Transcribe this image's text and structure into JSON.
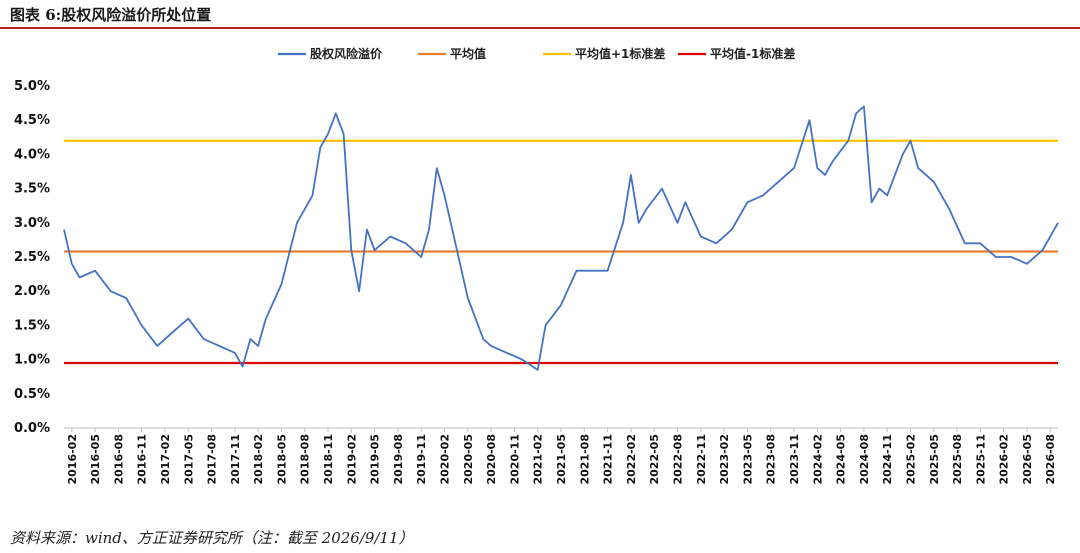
{
  "figure": {
    "title": "图表 6:股权风险溢价所处位置",
    "source": "资料来源：wind、方正证券研究所（注：截至 2026/9/11）"
  },
  "chart_data": {
    "type": "line",
    "ylim": [
      0.0,
      5.0
    ],
    "yticks": [
      "0.0%",
      "0.5%",
      "1.0%",
      "1.5%",
      "2.0%",
      "2.5%",
      "3.0%",
      "3.5%",
      "4.0%",
      "4.5%",
      "5.0%"
    ],
    "grid": false,
    "legend_position": "top-center",
    "xticks": [
      "2016-02",
      "2016-05",
      "2016-08",
      "2016-11",
      "2017-02",
      "2017-05",
      "2017-08",
      "2017-11",
      "2018-02",
      "2018-05",
      "2018-08",
      "2018-11",
      "2019-02",
      "2019-05",
      "2019-08",
      "2019-11",
      "2020-02",
      "2020-05",
      "2020-08",
      "2020-11",
      "2021-02",
      "2021-05",
      "2021-08",
      "2021-11",
      "2022-02",
      "2022-05",
      "2022-08",
      "2022-11",
      "2023-02",
      "2023-05",
      "2023-08",
      "2023-11",
      "2024-02",
      "2024-05",
      "2024-08",
      "2024-11",
      "2025-02",
      "2025-05",
      "2025-08",
      "2025-11",
      "2026-02",
      "2026-05",
      "2026-08"
    ],
    "series": [
      {
        "name": "股权风险溢价",
        "color": "#4472c4",
        "x": [
          "2016-01",
          "2016-02",
          "2016-03",
          "2016-05",
          "2016-07",
          "2016-09",
          "2016-11",
          "2017-01",
          "2017-03",
          "2017-05",
          "2017-07",
          "2017-09",
          "2017-11",
          "2017-12",
          "2018-01",
          "2018-02",
          "2018-03",
          "2018-05",
          "2018-07",
          "2018-09",
          "2018-10",
          "2018-11",
          "2018-12",
          "2019-01",
          "2019-02",
          "2019-03",
          "2019-04",
          "2019-05",
          "2019-07",
          "2019-09",
          "2019-11",
          "2019-12",
          "2020-01",
          "2020-02",
          "2020-03",
          "2020-05",
          "2020-07",
          "2020-08",
          "2020-10",
          "2020-12",
          "2021-02",
          "2021-03",
          "2021-05",
          "2021-07",
          "2021-09",
          "2021-11",
          "2022-01",
          "2022-02",
          "2022-03",
          "2022-04",
          "2022-06",
          "2022-08",
          "2022-09",
          "2022-11",
          "2023-01",
          "2023-03",
          "2023-05",
          "2023-07",
          "2023-09",
          "2023-11",
          "2024-01",
          "2024-02",
          "2024-03",
          "2024-04",
          "2024-06",
          "2024-07",
          "2024-08",
          "2024-09",
          "2024-10",
          "2024-11",
          "2025-01",
          "2025-02",
          "2025-03",
          "2025-05",
          "2025-07",
          "2025-09",
          "2025-11",
          "2026-01",
          "2026-03",
          "2026-05",
          "2026-07",
          "2026-09"
        ],
        "values": [
          2.9,
          2.4,
          2.2,
          2.3,
          2.0,
          1.9,
          1.5,
          1.2,
          1.4,
          1.6,
          1.3,
          1.2,
          1.1,
          0.9,
          1.3,
          1.2,
          1.6,
          2.1,
          3.0,
          3.4,
          4.1,
          4.3,
          4.6,
          4.3,
          2.6,
          2.0,
          2.9,
          2.6,
          2.8,
          2.7,
          2.5,
          2.9,
          3.8,
          3.4,
          2.9,
          1.9,
          1.3,
          1.2,
          1.1,
          1.0,
          0.85,
          1.5,
          1.8,
          2.3,
          2.3,
          2.3,
          3.0,
          3.7,
          3.0,
          3.2,
          3.5,
          3.0,
          3.3,
          2.8,
          2.7,
          2.9,
          3.3,
          3.4,
          3.6,
          3.8,
          4.5,
          3.8,
          3.7,
          3.9,
          4.2,
          4.6,
          4.7,
          3.3,
          3.5,
          3.4,
          4.0,
          4.2,
          3.8,
          3.6,
          3.2,
          2.7,
          2.7,
          2.5,
          2.5,
          2.4,
          2.6,
          3.0
        ]
      },
      {
        "name": "平均值",
        "color": "#ed7d31",
        "value": 2.58
      },
      {
        "name": "平均值+1标准差",
        "color": "#ffc000",
        "value": 4.2
      },
      {
        "name": "平均值-1标准差",
        "color": "#e00000",
        "value": 0.95
      }
    ]
  }
}
